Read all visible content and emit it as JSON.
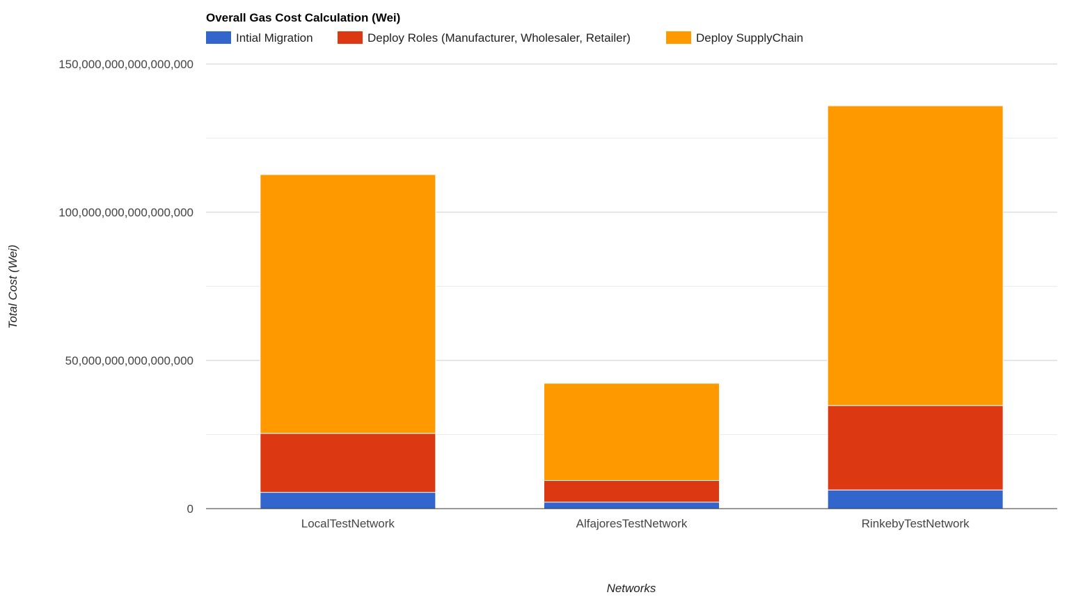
{
  "chart_data": {
    "type": "bar",
    "stacked": true,
    "title": "Overall Gas Cost Calculation (Wei)",
    "xlabel": "Networks",
    "ylabel": "Total Cost (Wei)",
    "categories": [
      "LocalTestNetwork",
      "AlfajoresTestNetwork",
      "RinkebyTestNetwork"
    ],
    "series": [
      {
        "name": "Intial Migration",
        "color": "#3366cc",
        "values": [
          5500000000000000,
          2200000000000000,
          6300000000000000
        ]
      },
      {
        "name": "Deploy Roles (Manufacturer, Wholesaler, Retailer)",
        "color": "#dc3912",
        "values": [
          19900000000000000,
          7300000000000000,
          28500000000000000
        ]
      },
      {
        "name": "Deploy SupplyChain",
        "color": "#ff9900",
        "values": [
          87300000000000000,
          32800000000000000,
          101100000000000000
        ]
      }
    ],
    "ylim": [
      0,
      150000000000000000
    ],
    "yticks": [
      {
        "value": 0,
        "label": "0"
      },
      {
        "value": 50000000000000000,
        "label": "50,000,000,000,000,000"
      },
      {
        "value": 100000000000000000,
        "label": "100,000,000,000,000,000"
      },
      {
        "value": 150000000000000000,
        "label": "150,000,000,000,000,000"
      }
    ],
    "minor_gridlines": [
      25000000000000000,
      75000000000000000,
      125000000000000000
    ],
    "grid": true,
    "legend_position": "top-left"
  }
}
